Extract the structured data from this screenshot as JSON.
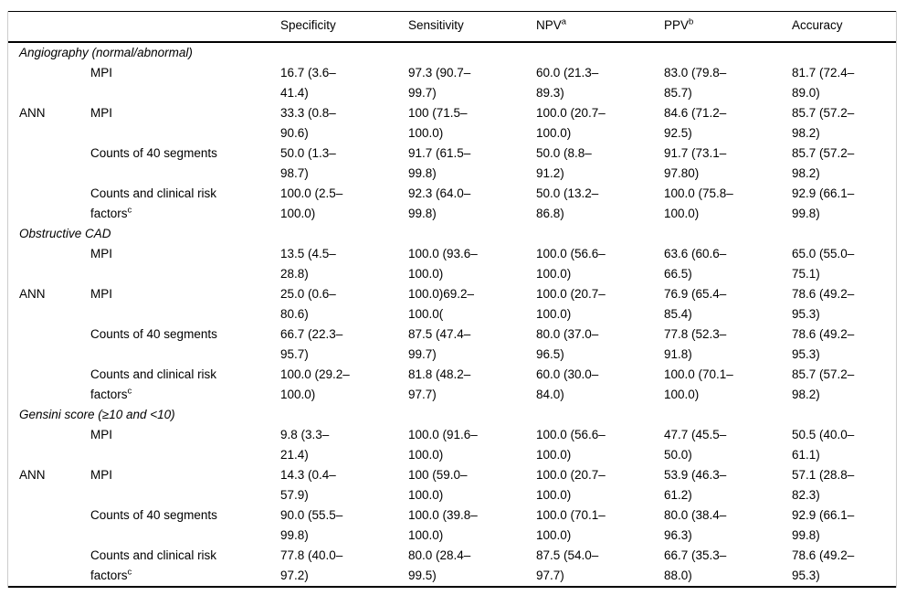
{
  "table": {
    "headers": [
      {
        "label": "Specificity",
        "sup": ""
      },
      {
        "label": "Sensitivity",
        "sup": ""
      },
      {
        "label": "NPV",
        "sup": "a"
      },
      {
        "label": "PPV",
        "sup": "b"
      },
      {
        "label": "Accuracy",
        "sup": ""
      }
    ],
    "sections": [
      {
        "title": "Angiography (normal/abnormal)",
        "rows": [
          {
            "group": "",
            "method": "MPI",
            "method_sup": "",
            "values": [
              "16.7 (3.6–\n41.4)",
              "97.3 (90.7–\n99.7)",
              "60.0 (21.3–\n89.3)",
              "83.0 (79.8–\n85.7)",
              "81.7 (72.4–\n89.0)"
            ]
          },
          {
            "group": "ANN",
            "method": "MPI",
            "method_sup": "",
            "values": [
              "33.3 (0.8–\n90.6)",
              "100 (71.5–\n100.0)",
              "100.0 (20.7–\n100.0)",
              "84.6 (71.2–\n92.5)",
              "85.7 (57.2–\n98.2)"
            ]
          },
          {
            "group": "",
            "method": "Counts of 40 segments",
            "method_sup": "",
            "values": [
              "50.0 (1.3–\n98.7)",
              "91.7 (61.5–\n99.8)",
              "50.0 (8.8–\n91.2)",
              "91.7 (73.1–\n97.80)",
              "85.7 (57.2–\n98.2)"
            ]
          },
          {
            "group": "",
            "method": "Counts and clinical risk\nfactors",
            "method_sup": "c",
            "values": [
              "100.0 (2.5–\n100.0)",
              "92.3 (64.0–\n99.8)",
              "50.0 (13.2–\n86.8)",
              "100.0 (75.8–\n100.0)",
              "92.9 (66.1–\n99.8)"
            ]
          }
        ]
      },
      {
        "title": "Obstructive CAD",
        "rows": [
          {
            "group": "",
            "method": "MPI",
            "method_sup": "",
            "values": [
              "13.5 (4.5–\n28.8)",
              "100.0 (93.6–\n100.0)",
              "100.0 (56.6–\n100.0)",
              "63.6 (60.6–\n66.5)",
              "65.0 (55.0–\n75.1)"
            ]
          },
          {
            "group": "ANN",
            "method": "MPI",
            "method_sup": "",
            "values": [
              "25.0 (0.6–\n80.6)",
              "100.0)69.2–\n100.0(",
              "100.0 (20.7–\n100.0)",
              "76.9 (65.4–\n85.4)",
              "78.6 (49.2–\n95.3)"
            ]
          },
          {
            "group": "",
            "method": "Counts of 40 segments",
            "method_sup": "",
            "values": [
              "66.7 (22.3–\n95.7)",
              "87.5 (47.4–\n99.7)",
              "80.0 (37.0–\n96.5)",
              "77.8 (52.3–\n91.8)",
              "78.6 (49.2–\n95.3)"
            ]
          },
          {
            "group": "",
            "method": "Counts and clinical risk\nfactors",
            "method_sup": "c",
            "values": [
              "100.0 (29.2–\n100.0)",
              "81.8 (48.2–\n97.7)",
              "60.0 (30.0–\n84.0)",
              "100.0 (70.1–\n100.0)",
              "85.7 (57.2–\n98.2)"
            ]
          }
        ]
      },
      {
        "title": "Gensini score (≥10 and <10)",
        "rows": [
          {
            "group": "",
            "method": "MPI",
            "method_sup": "",
            "values": [
              "9.8 (3.3–\n21.4)",
              "100.0 (91.6–\n100.0)",
              "100.0 (56.6–\n100.0)",
              "47.7 (45.5–\n50.0)",
              "50.5 (40.0–\n61.1)"
            ]
          },
          {
            "group": "ANN",
            "method": "MPI",
            "method_sup": "",
            "values": [
              "14.3 (0.4–\n57.9)",
              "100 (59.0–\n100.0)",
              "100.0 (20.7–\n100.0)",
              "53.9 (46.3–\n61.2)",
              "57.1 (28.8–\n82.3)"
            ]
          },
          {
            "group": "",
            "method": "Counts of 40 segments",
            "method_sup": "",
            "values": [
              "90.0 (55.5–\n99.8)",
              "100.0 (39.8–\n100.0)",
              "100.0 (70.1–\n100.0)",
              "80.0 (38.4–\n96.3)",
              "92.9 (66.1–\n99.8)"
            ]
          },
          {
            "group": "",
            "method": "Counts and clinical risk\nfactors",
            "method_sup": "c",
            "values": [
              "77.8 (40.0–\n97.2)",
              "80.0 (28.4–\n99.5)",
              "87.5 (54.0–\n97.7)",
              "66.7 (35.3–\n88.0)",
              "78.6 (49.2–\n95.3)"
            ]
          }
        ]
      }
    ]
  }
}
